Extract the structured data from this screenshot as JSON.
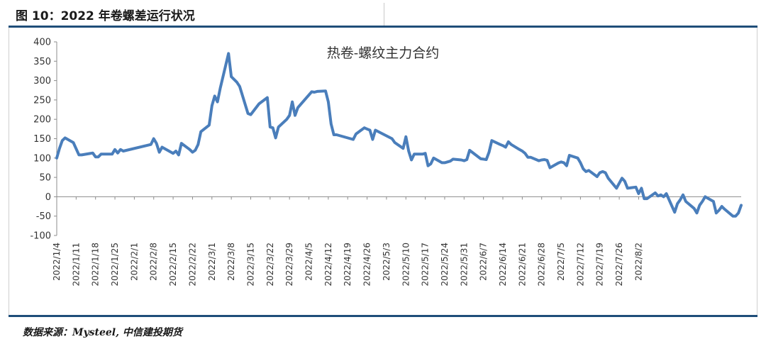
{
  "header": {
    "figure_title": "图 10：2022 年卷螺差运行状况"
  },
  "footer": {
    "source": "数据来源：Mysteel, 中信建投期货"
  },
  "chart_data": {
    "type": "line",
    "title": "",
    "xlabel": "",
    "ylabel": "",
    "ylim": [
      -100,
      400
    ],
    "yticks": [
      400,
      350,
      300,
      250,
      200,
      150,
      100,
      50,
      0,
      -50,
      -100
    ],
    "grid": false,
    "legend_position": "top-center",
    "line_color": "#4a7ebb",
    "series": [
      {
        "name": "热卷-螺纹主力合约"
      }
    ],
    "x_tick_labels": [
      "2022/1/4",
      "2022/1/11",
      "2022/1/18",
      "2022/1/25",
      "2022/2/1",
      "2022/2/8",
      "2022/2/15",
      "2022/2/22",
      "2022/3/1",
      "2022/3/8",
      "2022/3/15",
      "2022/3/22",
      "2022/3/29",
      "2022/4/5",
      "2022/4/12",
      "2022/4/19",
      "2022/4/26",
      "2022/5/3",
      "2022/5/10",
      "2022/5/17",
      "2022/5/24",
      "2022/5/31",
      "2022/6/7",
      "2022/6/14",
      "2022/6/21",
      "2022/6/28",
      "2022/7/5",
      "2022/7/12",
      "2022/7/19",
      "2022/7/26",
      "2022/8/2"
    ],
    "points": [
      [
        "2022/1/4",
        100
      ],
      [
        "2022/1/5",
        125
      ],
      [
        "2022/1/6",
        145
      ],
      [
        "2022/1/7",
        152
      ],
      [
        "2022/1/10",
        140
      ],
      [
        "2022/1/12",
        108
      ],
      [
        "2022/1/13",
        108
      ],
      [
        "2022/1/17",
        113
      ],
      [
        "2022/1/18",
        103
      ],
      [
        "2022/1/19",
        103
      ],
      [
        "2022/1/20",
        110
      ],
      [
        "2022/1/21",
        110
      ],
      [
        "2022/1/24",
        110
      ],
      [
        "2022/1/25",
        122
      ],
      [
        "2022/1/26",
        113
      ],
      [
        "2022/1/27",
        122
      ],
      [
        "2022/1/28",
        118
      ],
      [
        "2022/2/7",
        135
      ],
      [
        "2022/2/8",
        150
      ],
      [
        "2022/2/9",
        138
      ],
      [
        "2022/2/10",
        115
      ],
      [
        "2022/2/11",
        128
      ],
      [
        "2022/2/15",
        112
      ],
      [
        "2022/2/16",
        118
      ],
      [
        "2022/2/17",
        108
      ],
      [
        "2022/2/18",
        138
      ],
      [
        "2022/2/21",
        122
      ],
      [
        "2022/2/22",
        115
      ],
      [
        "2022/2/23",
        120
      ],
      [
        "2022/2/24",
        135
      ],
      [
        "2022/2/25",
        168
      ],
      [
        "2022/2/28",
        185
      ],
      [
        "2022/3/1",
        235
      ],
      [
        "2022/3/2",
        260
      ],
      [
        "2022/3/3",
        245
      ],
      [
        "2022/3/4",
        280
      ],
      [
        "2022/3/7",
        370
      ],
      [
        "2022/3/8",
        310
      ],
      [
        "2022/3/10",
        296
      ],
      [
        "2022/3/11",
        285
      ],
      [
        "2022/3/14",
        215
      ],
      [
        "2022/3/15",
        212
      ],
      [
        "2022/3/18",
        240
      ],
      [
        "2022/3/21",
        256
      ],
      [
        "2022/3/22",
        180
      ],
      [
        "2022/3/23",
        178
      ],
      [
        "2022/3/24",
        152
      ],
      [
        "2022/3/25",
        180
      ],
      [
        "2022/3/28",
        200
      ],
      [
        "2022/3/29",
        210
      ],
      [
        "2022/3/30",
        245
      ],
      [
        "2022/3/31",
        210
      ],
      [
        "2022/4/1",
        230
      ],
      [
        "2022/4/6",
        271
      ],
      [
        "2022/4/7",
        270
      ],
      [
        "2022/4/8",
        272
      ],
      [
        "2022/4/11",
        273
      ],
      [
        "2022/4/12",
        245
      ],
      [
        "2022/4/13",
        188
      ],
      [
        "2022/4/14",
        160
      ],
      [
        "2022/4/15",
        160
      ],
      [
        "2022/4/20",
        150
      ],
      [
        "2022/4/21",
        148
      ],
      [
        "2022/4/22",
        162
      ],
      [
        "2022/4/25",
        178
      ],
      [
        "2022/4/26",
        175
      ],
      [
        "2022/4/27",
        172
      ],
      [
        "2022/4/28",
        148
      ],
      [
        "2022/4/29",
        172
      ],
      [
        "2022/5/5",
        150
      ],
      [
        "2022/5/6",
        140
      ],
      [
        "2022/5/9",
        125
      ],
      [
        "2022/5/10",
        155
      ],
      [
        "2022/5/11",
        118
      ],
      [
        "2022/5/12",
        95
      ],
      [
        "2022/5/13",
        110
      ],
      [
        "2022/5/16",
        110
      ],
      [
        "2022/5/17",
        112
      ],
      [
        "2022/5/18",
        80
      ],
      [
        "2022/5/19",
        85
      ],
      [
        "2022/5/20",
        100
      ],
      [
        "2022/5/23",
        88
      ],
      [
        "2022/5/24",
        88
      ],
      [
        "2022/5/25",
        90
      ],
      [
        "2022/5/26",
        92
      ],
      [
        "2022/5/27",
        97
      ],
      [
        "2022/5/30",
        95
      ],
      [
        "2022/5/31",
        93
      ],
      [
        "2022/6/1",
        96
      ],
      [
        "2022/6/2",
        120
      ],
      [
        "2022/6/6",
        98
      ],
      [
        "2022/6/7",
        97
      ],
      [
        "2022/6/8",
        96
      ],
      [
        "2022/6/9",
        115
      ],
      [
        "2022/6/10",
        145
      ],
      [
        "2022/6/13",
        135
      ],
      [
        "2022/6/14",
        132
      ],
      [
        "2022/6/15",
        128
      ],
      [
        "2022/6/16",
        142
      ],
      [
        "2022/6/17",
        135
      ],
      [
        "2022/6/20",
        122
      ],
      [
        "2022/6/21",
        118
      ],
      [
        "2022/6/22",
        112
      ],
      [
        "2022/6/23",
        102
      ],
      [
        "2022/6/24",
        102
      ],
      [
        "2022/6/27",
        93
      ],
      [
        "2022/6/28",
        95
      ],
      [
        "2022/6/29",
        96
      ],
      [
        "2022/6/30",
        94
      ],
      [
        "2022/7/1",
        75
      ],
      [
        "2022/7/4",
        87
      ],
      [
        "2022/7/5",
        90
      ],
      [
        "2022/7/6",
        88
      ],
      [
        "2022/7/7",
        80
      ],
      [
        "2022/7/8",
        107
      ],
      [
        "2022/7/11",
        100
      ],
      [
        "2022/7/12",
        88
      ],
      [
        "2022/7/13",
        72
      ],
      [
        "2022/7/14",
        65
      ],
      [
        "2022/7/15",
        68
      ],
      [
        "2022/7/18",
        52
      ],
      [
        "2022/7/19",
        62
      ],
      [
        "2022/7/20",
        65
      ],
      [
        "2022/7/21",
        62
      ],
      [
        "2022/7/22",
        48
      ],
      [
        "2022/7/25",
        22
      ],
      [
        "2022/7/26",
        35
      ],
      [
        "2022/7/27",
        48
      ],
      [
        "2022/7/28",
        40
      ],
      [
        "2022/7/29",
        22
      ],
      [
        "2022/8/1",
        25
      ],
      [
        "2022/8/2",
        8
      ],
      [
        "2022/8/3",
        22
      ],
      [
        "2022/8/4",
        -5
      ],
      [
        "2022/8/5",
        -5
      ],
      [
        "2022/8/8",
        10
      ],
      [
        "2022/8/9",
        2
      ],
      [
        "2022/8/10",
        5
      ],
      [
        "2022/8/11",
        0
      ],
      [
        "2022/8/12",
        8
      ],
      [
        "2022/8/15",
        -40
      ],
      [
        "2022/8/16",
        -18
      ],
      [
        "2022/8/17",
        -8
      ],
      [
        "2022/8/18",
        5
      ],
      [
        "2022/8/19",
        -12
      ],
      [
        "2022/8/22",
        -30
      ],
      [
        "2022/8/23",
        -42
      ],
      [
        "2022/8/24",
        -22
      ],
      [
        "2022/8/25",
        -12
      ],
      [
        "2022/8/26",
        0
      ],
      [
        "2022/8/29",
        -12
      ],
      [
        "2022/8/30",
        -42
      ],
      [
        "2022/8/31",
        -35
      ],
      [
        "2022/9/1",
        -25
      ],
      [
        "2022/9/2",
        -32
      ],
      [
        "2022/9/5",
        -50
      ],
      [
        "2022/9/6",
        -50
      ],
      [
        "2022/9/7",
        -42
      ],
      [
        "2022/9/8",
        -22
      ]
    ]
  }
}
